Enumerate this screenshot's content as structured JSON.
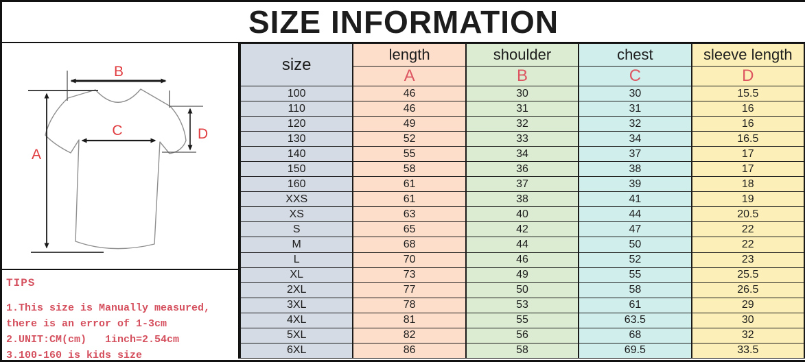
{
  "title": "SIZE INFORMATION",
  "diagram": {
    "labels": {
      "a": "A",
      "b": "B",
      "c": "C",
      "d": "D"
    }
  },
  "tips": {
    "heading": "TIPS",
    "lines": [
      "1.This size is Manually measured,",
      "there is an error of 1-3cm",
      "2.UNIT:CM(cm)   1inch=2.54cm",
      "3.100-160 is kids size"
    ]
  },
  "chart_data": {
    "type": "table",
    "title": "SIZE INFORMATION",
    "unit": "cm",
    "columns": [
      {
        "label": "size",
        "letter": "",
        "color": "#d5dbe4"
      },
      {
        "label": "length",
        "letter": "A",
        "color": "#fcdecb"
      },
      {
        "label": "shoulder",
        "letter": "B",
        "color": "#dcecd2"
      },
      {
        "label": "chest",
        "letter": "C",
        "color": "#cfeeec"
      },
      {
        "label": "sleeve length",
        "letter": "D",
        "color": "#fcf0b8"
      }
    ],
    "rows": [
      [
        "100",
        "46",
        "30",
        "30",
        "15.5"
      ],
      [
        "110",
        "46",
        "31",
        "31",
        "16"
      ],
      [
        "120",
        "49",
        "32",
        "32",
        "16"
      ],
      [
        "130",
        "52",
        "33",
        "34",
        "16.5"
      ],
      [
        "140",
        "55",
        "34",
        "37",
        "17"
      ],
      [
        "150",
        "58",
        "36",
        "38",
        "17"
      ],
      [
        "160",
        "61",
        "37",
        "39",
        "18"
      ],
      [
        "XXS",
        "61",
        "38",
        "41",
        "19"
      ],
      [
        "XS",
        "63",
        "40",
        "44",
        "20.5"
      ],
      [
        "S",
        "65",
        "42",
        "47",
        "22"
      ],
      [
        "M",
        "68",
        "44",
        "50",
        "22"
      ],
      [
        "L",
        "70",
        "46",
        "52",
        "23"
      ],
      [
        "XL",
        "73",
        "49",
        "55",
        "25.5"
      ],
      [
        "2XL",
        "77",
        "50",
        "58",
        "26.5"
      ],
      [
        "3XL",
        "78",
        "53",
        "61",
        "29"
      ],
      [
        "4XL",
        "81",
        "55",
        "63.5",
        "30"
      ],
      [
        "5XL",
        "82",
        "56",
        "68",
        "32"
      ],
      [
        "6XL",
        "86",
        "58",
        "69.5",
        "33.5"
      ]
    ]
  },
  "colors": {
    "border": "#111111",
    "title_text": "#1c1c1c",
    "diagram_label_red": "#e03c40",
    "table_letter_red": "#dd5560",
    "tips_red": "#d5505e",
    "tshirt_outline": "#8f8f8f",
    "arrow_black": "#1a1a1a"
  }
}
